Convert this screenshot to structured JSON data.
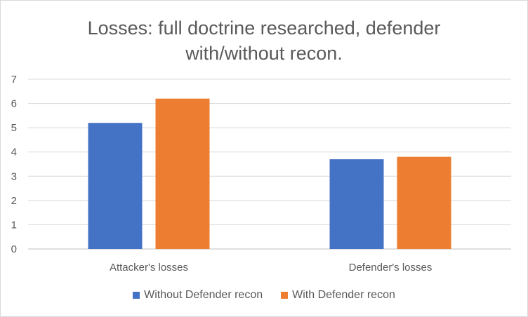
{
  "chart_data": {
    "type": "bar",
    "title_lines": [
      "Losses: full doctrine researched, defender",
      "with/without recon."
    ],
    "categories": [
      "Attacker's losses",
      "Defender's losses"
    ],
    "series": [
      {
        "name": "Without Defender recon",
        "color": "#4472c4",
        "values": [
          5.2,
          3.7
        ]
      },
      {
        "name": "With Defender recon",
        "color": "#ed7d31",
        "values": [
          6.2,
          3.8
        ]
      }
    ],
    "ylim": [
      0,
      7
    ],
    "yticks": [
      "0",
      "1",
      "2",
      "3",
      "4",
      "5",
      "6",
      "7"
    ],
    "grid": true,
    "legend_position": "bottom"
  }
}
